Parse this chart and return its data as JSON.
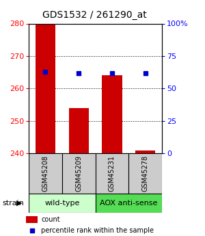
{
  "title": "GDS1532 / 261290_at",
  "samples": [
    "GSM45208",
    "GSM45209",
    "GSM45231",
    "GSM45278"
  ],
  "bar_values": [
    280,
    254,
    264,
    241
  ],
  "bar_base": 240,
  "percentile_values": [
    63,
    62,
    62,
    62
  ],
  "left_ylim": [
    240,
    280
  ],
  "right_ylim": [
    0,
    100
  ],
  "left_yticks": [
    240,
    250,
    260,
    270,
    280
  ],
  "right_yticks": [
    0,
    25,
    50,
    75,
    100
  ],
  "right_yticklabels": [
    "0",
    "25",
    "50",
    "75",
    "100%"
  ],
  "bar_color": "#cc0000",
  "dot_color": "#0000cc",
  "background_color": "#ffffff",
  "group_colors_wt": "#ccffcc",
  "group_colors_aox": "#55dd55",
  "group_label": "strain",
  "bar_width": 0.6,
  "sample_box_color": "#cccccc",
  "title_fontsize": 10,
  "tick_fontsize": 8,
  "legend_fontsize": 7,
  "label_fontsize": 7,
  "group_fontsize": 8
}
